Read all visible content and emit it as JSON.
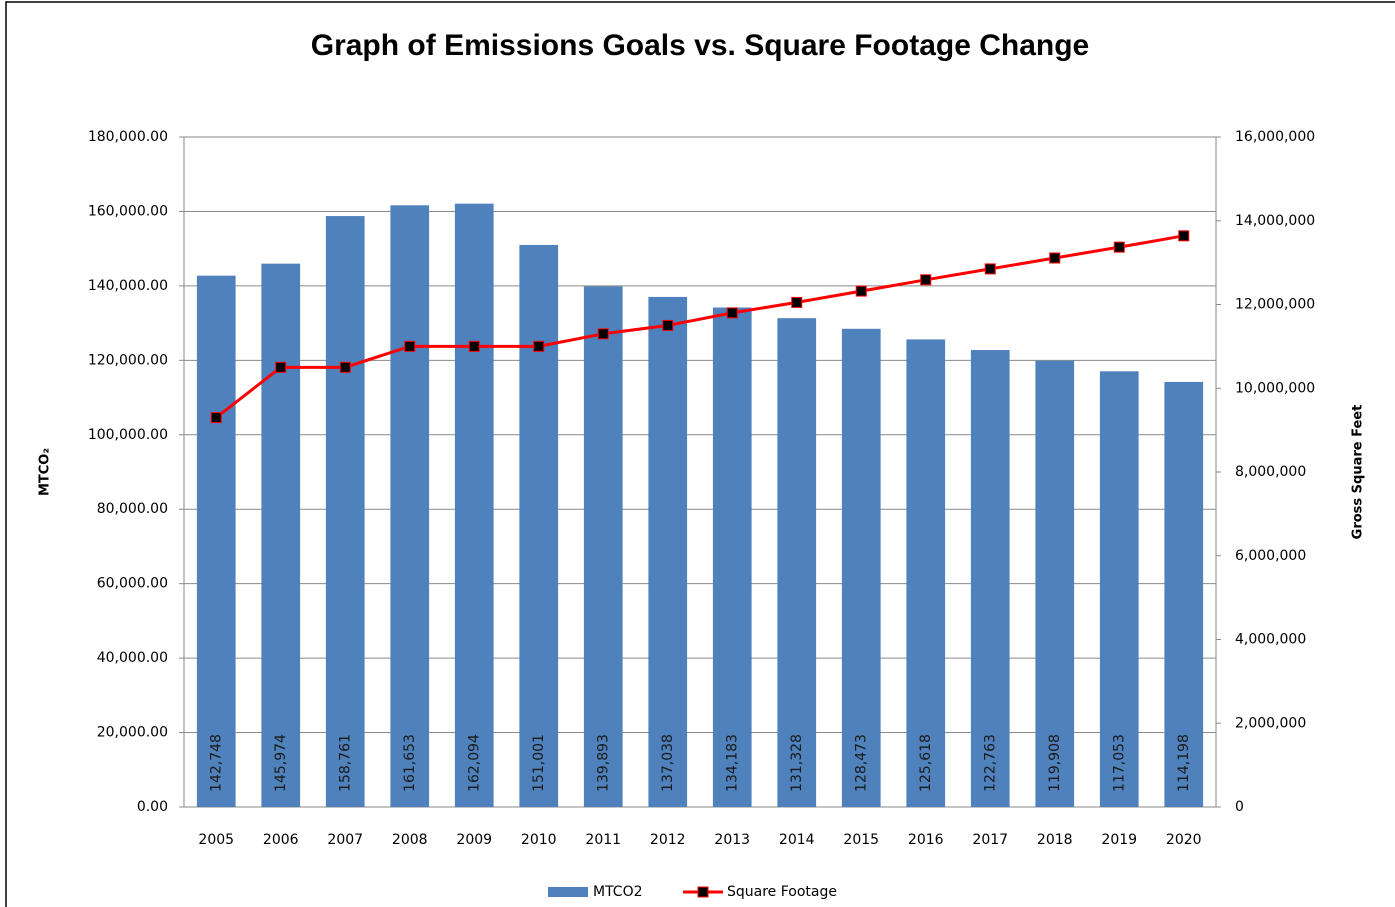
{
  "chart_data": {
    "type": "bar",
    "title": "Graph of Emissions Goals vs. Square Footage Change",
    "y_label": "MTCO₂",
    "y2_label": "Gross Square Feet",
    "categories": [
      "2005",
      "2006",
      "2007",
      "2008",
      "2009",
      "2010",
      "2011",
      "2012",
      "2013",
      "2014",
      "2015",
      "2016",
      "2017",
      "2018",
      "2019",
      "2020"
    ],
    "series": [
      {
        "name": "MTCO2",
        "type": "bar",
        "color": "#4f81bd",
        "values": [
          142748,
          145974,
          158761,
          161653,
          162094,
          151001,
          139893,
          137038,
          134183,
          131328,
          128473,
          125618,
          122763,
          119908,
          117053,
          114198
        ],
        "value_labels": [
          "142,748",
          "145,974",
          "158,761",
          "161,653",
          "162,094",
          "151,001",
          "139,893",
          "137,038",
          "134,183",
          "131,328",
          "128,473",
          "125,618",
          "122,763",
          "119,908",
          "117,053",
          "114,198"
        ]
      },
      {
        "name": "Square Footage",
        "type": "line",
        "axis": "y2",
        "color": "#ff0000",
        "marker_color": "#000000",
        "values": [
          9300000,
          10500000,
          10500000,
          11000000,
          11000000,
          11000000,
          11300000,
          11500000,
          11800000,
          12050000,
          12320000,
          12590000,
          12850000,
          13110000,
          13370000,
          13640000
        ]
      }
    ],
    "ylim": [
      0,
      180000
    ],
    "yticks": [
      {
        "value": 0,
        "label": "0.00"
      },
      {
        "value": 20000,
        "label": "20,000.00"
      },
      {
        "value": 40000,
        "label": "40,000.00"
      },
      {
        "value": 60000,
        "label": "60,000.00"
      },
      {
        "value": 80000,
        "label": "80,000.00"
      },
      {
        "value": 100000,
        "label": "100,000.00"
      },
      {
        "value": 120000,
        "label": "120,000.00"
      },
      {
        "value": 140000,
        "label": "140,000.00"
      },
      {
        "value": 160000,
        "label": "160,000.00"
      },
      {
        "value": 180000,
        "label": "180,000.00"
      }
    ],
    "y2lim": [
      0,
      16000000
    ],
    "y2ticks": [
      0,
      {
        "value": 2000000,
        "label": "2,000,000"
      },
      {
        "value": 4000000,
        "label": "4,000,000"
      },
      {
        "value": 6000000,
        "label": "6,000,000"
      },
      {
        "value": 8000000,
        "label": "8,000,000"
      },
      {
        "value": 10000000,
        "label": "10,000,000"
      },
      {
        "value": 12000000,
        "label": "12,000,000"
      },
      {
        "value": 14000000,
        "label": "14,000,000"
      },
      {
        "value": 16000000,
        "label": "16,000,000"
      }
    ],
    "grid": true,
    "legend": "bottom"
  }
}
